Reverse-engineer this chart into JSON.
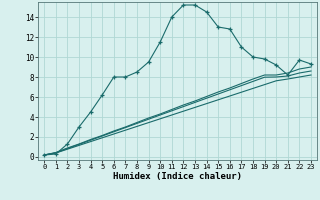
{
  "xlabel": "Humidex (Indice chaleur)",
  "background_color": "#d8f0ee",
  "line_color": "#1a6b6b",
  "grid_color": "#b0d8d4",
  "x_ticks": [
    0,
    1,
    2,
    3,
    4,
    5,
    6,
    7,
    8,
    9,
    10,
    11,
    12,
    13,
    14,
    15,
    16,
    17,
    18,
    19,
    20,
    21,
    22,
    23
  ],
  "y_ticks": [
    0,
    2,
    4,
    6,
    8,
    10,
    12,
    14
  ],
  "ylim": [
    -0.3,
    15.5
  ],
  "xlim": [
    -0.5,
    23.5
  ],
  "curve1_x": [
    0,
    1,
    2,
    3,
    4,
    5,
    6,
    7,
    8,
    9,
    10,
    11,
    12,
    13,
    14,
    15,
    16,
    17,
    18,
    19,
    20,
    21,
    22,
    23
  ],
  "curve1_y": [
    0.2,
    0.3,
    1.3,
    3.0,
    4.5,
    6.2,
    8.0,
    8.0,
    8.5,
    9.5,
    11.5,
    14.0,
    15.2,
    15.2,
    14.5,
    13.0,
    12.8,
    11.0,
    10.0,
    9.8,
    9.2,
    8.2,
    9.7,
    9.3
  ],
  "curve2_x": [
    0,
    1,
    2,
    3,
    4,
    5,
    6,
    7,
    8,
    9,
    10,
    11,
    12,
    13,
    14,
    15,
    16,
    17,
    18,
    19,
    20,
    21,
    22,
    23
  ],
  "curve2_y": [
    0.2,
    0.45,
    0.9,
    1.3,
    1.75,
    2.15,
    2.6,
    3.0,
    3.45,
    3.9,
    4.3,
    4.75,
    5.2,
    5.6,
    6.05,
    6.5,
    6.9,
    7.35,
    7.8,
    8.2,
    8.2,
    8.4,
    8.8,
    9.0
  ],
  "curve3_x": [
    0,
    1,
    2,
    3,
    4,
    5,
    6,
    7,
    8,
    9,
    10,
    11,
    12,
    13,
    14,
    15,
    16,
    17,
    18,
    19,
    20,
    21,
    22,
    23
  ],
  "curve3_y": [
    0.2,
    0.42,
    0.84,
    1.26,
    1.68,
    2.1,
    2.52,
    2.94,
    3.36,
    3.78,
    4.2,
    4.62,
    5.04,
    5.46,
    5.88,
    6.3,
    6.72,
    7.14,
    7.56,
    7.98,
    8.0,
    8.1,
    8.4,
    8.6
  ],
  "curve4_x": [
    0,
    1,
    2,
    3,
    4,
    5,
    6,
    7,
    8,
    9,
    10,
    11,
    12,
    13,
    14,
    15,
    16,
    17,
    18,
    19,
    20,
    21,
    22,
    23
  ],
  "curve4_y": [
    0.2,
    0.4,
    0.78,
    1.16,
    1.54,
    1.92,
    2.3,
    2.68,
    3.06,
    3.44,
    3.82,
    4.2,
    4.58,
    4.96,
    5.34,
    5.72,
    6.1,
    6.48,
    6.86,
    7.24,
    7.62,
    7.8,
    8.0,
    8.2
  ]
}
